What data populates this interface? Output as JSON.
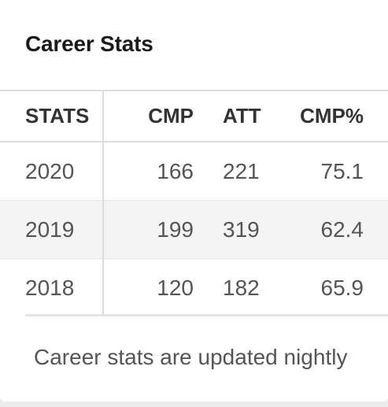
{
  "card": {
    "title": "Career Stats",
    "footnote": "Career stats are updated nightly"
  },
  "table": {
    "headers": {
      "stats": "STATS",
      "cmp": "CMP",
      "att": "ATT",
      "cmp_pct": "CMP%"
    },
    "rows": [
      {
        "year": "2020",
        "cmp": "166",
        "att": "221",
        "cmp_pct": "75.1"
      },
      {
        "year": "2019",
        "cmp": "199",
        "att": "319",
        "cmp_pct": "62.4"
      },
      {
        "year": "2018",
        "cmp": "120",
        "att": "182",
        "cmp_pct": "65.9"
      }
    ]
  }
}
